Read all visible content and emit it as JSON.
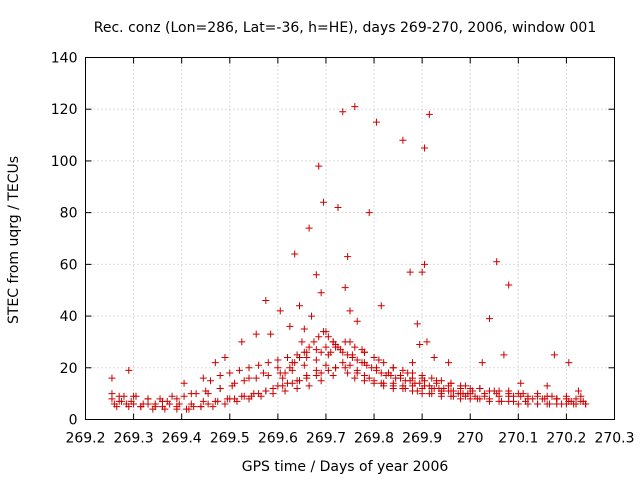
{
  "chart_data": {
    "type": "scatter",
    "title": "Rec. conz (Lon=286, Lat=-36, h=HE), days 269-270, 2006, window 001",
    "xlabel": "GPS time / Days of year 2006",
    "ylabel": "STEC from uqrg / TECUs",
    "xlim": [
      269.2,
      270.3
    ],
    "ylim": [
      0,
      140
    ],
    "xticks": [
      269.2,
      269.3,
      269.4,
      269.5,
      269.6,
      269.7,
      269.8,
      269.9,
      270,
      270.1,
      270.2,
      270.3
    ],
    "xtick_labels": [
      "269.2",
      "269.3",
      "269.4",
      "269.5",
      "269.6",
      "269.7",
      "269.8",
      "269.9",
      "270",
      "270.1",
      "270.2",
      "270.3"
    ],
    "yticks": [
      0,
      20,
      40,
      60,
      80,
      100,
      120,
      140
    ],
    "ytick_labels": [
      "0",
      "20",
      "40",
      "60",
      "80",
      "100",
      "120",
      "140"
    ],
    "grid": true,
    "marker": "+",
    "marker_color": "#cc0000",
    "series": [
      {
        "x": [
          269.255,
          269.29,
          269.405,
          269.445,
          269.47,
          269.49,
          269.525,
          269.555,
          269.575,
          269.585,
          269.605,
          269.625,
          269.635,
          269.645,
          269.65,
          269.655,
          269.665,
          269.67,
          269.68,
          269.685,
          269.69,
          269.695,
          269.7,
          269.71,
          269.715,
          269.725,
          269.735,
          269.74,
          269.745,
          269.75,
          269.76,
          269.765,
          269.775,
          269.79,
          269.805,
          269.815,
          269.86,
          269.875,
          269.88,
          269.89,
          269.895,
          269.9,
          269.905,
          269.905,
          269.91,
          269.915,
          269.925,
          269.955,
          270.025,
          270.04,
          270.055,
          270.07,
          270.08,
          270.105,
          270.16,
          270.175,
          270.205,
          270.225,
          269.26,
          269.27,
          269.285,
          269.3,
          269.315,
          269.33,
          269.345,
          269.36,
          269.375,
          269.39,
          269.41,
          269.425,
          269.44,
          269.455,
          269.475,
          269.495,
          269.51,
          269.53,
          269.545,
          269.56,
          269.575,
          269.59,
          269.61,
          269.63,
          269.645,
          269.66,
          269.68,
          269.7,
          269.72,
          269.745,
          269.76,
          269.78,
          269.8,
          269.82,
          269.84,
          269.86,
          269.88,
          269.9,
          269.92,
          269.94,
          269.96,
          269.98,
          270.0,
          270.02,
          270.04,
          270.06,
          270.08,
          270.1,
          270.12,
          270.14,
          270.16,
          270.18,
          270.2,
          270.22,
          270.24,
          269.255,
          269.275,
          269.295,
          269.32,
          269.345,
          269.37,
          269.395,
          269.42,
          269.445,
          269.47,
          269.5,
          269.525,
          269.55,
          269.575,
          269.6,
          269.62,
          269.64,
          269.66,
          269.68,
          269.69,
          269.705,
          269.72,
          269.735,
          269.75,
          269.765,
          269.78,
          269.8,
          269.82,
          269.84,
          269.86,
          269.88,
          269.9,
          269.92,
          269.94,
          269.96,
          269.98,
          270.0,
          270.03,
          270.06,
          270.09,
          270.12,
          270.15,
          270.18,
          270.21,
          270.235,
          269.265,
          269.29,
          269.315,
          269.34,
          269.365,
          269.39,
          269.415,
          269.44,
          269.465,
          269.49,
          269.515,
          269.54,
          269.565,
          269.59,
          269.615,
          269.64,
          269.665,
          269.69,
          269.715,
          269.74,
          269.765,
          269.79,
          269.815,
          269.84,
          269.865,
          269.89,
          269.915,
          269.94,
          269.965,
          269.99,
          270.015,
          270.04,
          270.065,
          270.09,
          270.115,
          270.14,
          270.165,
          270.19,
          270.215,
          270.24,
          269.255,
          269.28,
          269.305,
          269.33,
          269.355,
          269.38,
          269.405,
          269.43,
          269.455,
          269.48,
          269.505,
          269.53,
          269.555,
          269.58,
          269.605,
          269.63,
          269.655,
          269.68,
          269.705,
          269.73,
          269.755,
          269.78,
          269.805,
          269.83,
          269.855,
          269.88,
          269.905,
          269.93,
          269.955,
          269.98,
          270.005,
          270.03,
          270.055,
          270.08,
          270.105,
          270.13,
          270.155,
          270.18,
          270.205,
          270.23,
          269.27,
          269.3,
          269.33,
          269.36,
          269.39,
          269.42,
          269.45,
          269.48,
          269.51,
          269.54,
          269.57,
          269.6,
          269.63,
          269.66,
          269.69,
          269.72,
          269.75,
          269.78,
          269.81,
          269.84,
          269.87,
          269.9,
          269.93,
          269.96,
          269.99,
          270.02,
          270.05,
          270.08,
          270.11,
          270.14,
          270.17,
          270.2,
          270.23,
          269.46,
          269.48,
          269.5,
          269.52,
          269.54,
          269.56,
          269.58,
          269.6,
          269.62,
          269.64,
          269.66,
          269.68,
          269.7,
          269.72,
          269.74,
          269.76,
          269.78,
          269.8,
          269.82,
          269.84,
          269.86,
          269.88,
          269.9,
          269.92,
          269.94,
          269.96,
          269.98,
          270.0,
          270.02,
          270.04,
          270.06,
          270.08,
          270.1,
          270.12,
          270.14,
          270.16,
          270.18,
          270.2,
          270.22,
          269.61,
          269.615,
          269.625,
          269.635,
          269.645,
          269.655,
          269.665,
          269.675,
          269.685,
          269.695,
          269.705,
          269.715,
          269.725,
          269.735,
          269.745,
          269.755,
          269.765,
          269.775,
          269.785,
          269.795,
          269.805,
          269.815,
          269.825,
          269.835,
          269.845,
          269.855,
          269.865,
          269.875,
          269.885,
          269.895,
          269.905,
          269.915,
          269.925,
          269.935,
          269.945,
          269.955,
          269.965,
          269.975,
          269.985,
          269.995,
          270.01
        ],
        "y": [
          16,
          19,
          14,
          16,
          22,
          24,
          30,
          33,
          46,
          33,
          42,
          36,
          64,
          44,
          30,
          35,
          74,
          40,
          56,
          98,
          49,
          84,
          34,
          26,
          30,
          82,
          119,
          51,
          63,
          42,
          121,
          38,
          27,
          80,
          115,
          44,
          108,
          57,
          22,
          37,
          29,
          57,
          105,
          60,
          30,
          118,
          24,
          22,
          22,
          39,
          61,
          25,
          52,
          14,
          13,
          25,
          22,
          11,
          6,
          7,
          6,
          6,
          5,
          6,
          5,
          5,
          6,
          5,
          4,
          5,
          5,
          6,
          7,
          8,
          8,
          9,
          9,
          10,
          11,
          12,
          13,
          14,
          15,
          17,
          19,
          21,
          20,
          18,
          16,
          15,
          14,
          13,
          12,
          12,
          11,
          10,
          10,
          9,
          9,
          8,
          8,
          8,
          7,
          7,
          7,
          6,
          6,
          6,
          6,
          6,
          6,
          6,
          6,
          8,
          7,
          7,
          6,
          6,
          7,
          6,
          6,
          7,
          7,
          8,
          9,
          10,
          11,
          13,
          14,
          15,
          16,
          17,
          18,
          19,
          20,
          22,
          21,
          19,
          17,
          15,
          14,
          14,
          13,
          13,
          12,
          12,
          11,
          11,
          10,
          10,
          9,
          9,
          9,
          8,
          8,
          8,
          7,
          7,
          5,
          5,
          5,
          4,
          4,
          4,
          4,
          5,
          5,
          6,
          7,
          8,
          9,
          10,
          11,
          12,
          13,
          15,
          17,
          20,
          18,
          16,
          14,
          13,
          12,
          11,
          10,
          10,
          9,
          9,
          8,
          8,
          7,
          7,
          7,
          6,
          6,
          6,
          6,
          6,
          10,
          9,
          9,
          8,
          8,
          9,
          9,
          10,
          10,
          12,
          13,
          15,
          16,
          17,
          18,
          19,
          21,
          23,
          25,
          27,
          25,
          22,
          20,
          18,
          17,
          16,
          15,
          14,
          13,
          12,
          11,
          10,
          10,
          9,
          9,
          8,
          8,
          8,
          7,
          7,
          9,
          9,
          8,
          7,
          8,
          10,
          11,
          12,
          14,
          16,
          18,
          20,
          22,
          24,
          26,
          28,
          30,
          26,
          23,
          20,
          18,
          16,
          15,
          14,
          13,
          12,
          11,
          11,
          10,
          10,
          9,
          9,
          9,
          15,
          17,
          18,
          19,
          20,
          21,
          22,
          23,
          24,
          25,
          26,
          27,
          28,
          29,
          30,
          28,
          26,
          24,
          22,
          20,
          19,
          18,
          17,
          16,
          15,
          14,
          13,
          12,
          12,
          11,
          11,
          10,
          10,
          9,
          9,
          9,
          8,
          8,
          8,
          16,
          18,
          20,
          22,
          24,
          26,
          28,
          30,
          32,
          34,
          32,
          30,
          28,
          26,
          25,
          24,
          23,
          22,
          21,
          20,
          19,
          18,
          17,
          17,
          16,
          16,
          15,
          15,
          14,
          14,
          13,
          13,
          12,
          12,
          12,
          11,
          11,
          10,
          10,
          10,
          9
        ]
      }
    ]
  }
}
